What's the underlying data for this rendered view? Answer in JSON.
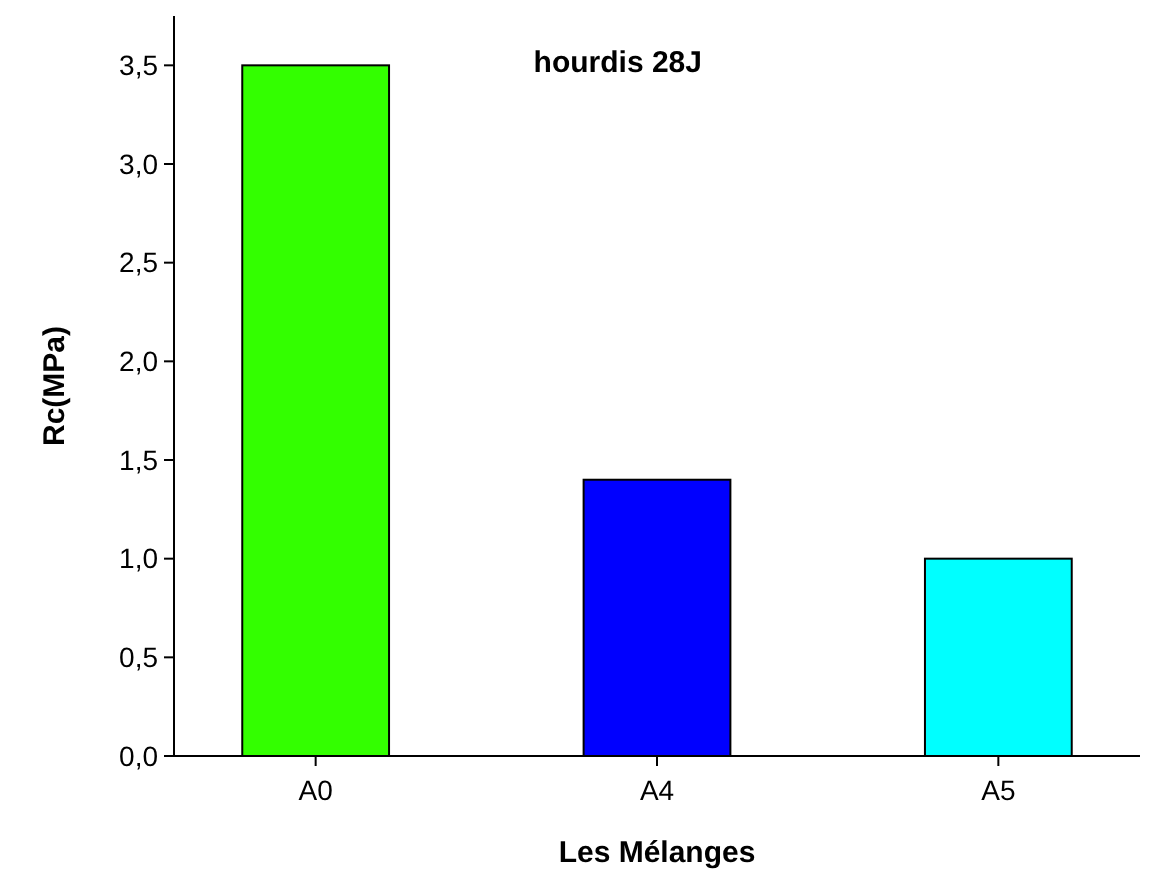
{
  "chart_data": {
    "type": "bar",
    "title": "hourdis 28J",
    "xlabel": "Les Mélanges",
    "ylabel": "Rc(MPa)",
    "categories": [
      "A0",
      "A4",
      "A5"
    ],
    "values": [
      3.5,
      1.4,
      1.0
    ],
    "colors": [
      "#33ff00",
      "#0000ff",
      "#00ffff"
    ],
    "ylim": [
      0,
      3.75
    ],
    "yticks": [
      {
        "value": 0,
        "label": "0,0"
      },
      {
        "value": 0.5,
        "label": "0,5"
      },
      {
        "value": 1,
        "label": "1,0"
      },
      {
        "value": 1.5,
        "label": "1,5"
      },
      {
        "value": 2,
        "label": "2,0"
      },
      {
        "value": 2.5,
        "label": "2,5"
      },
      {
        "value": 3,
        "label": "3,0"
      },
      {
        "value": 3.5,
        "label": "3,5"
      }
    ],
    "grid": false
  }
}
